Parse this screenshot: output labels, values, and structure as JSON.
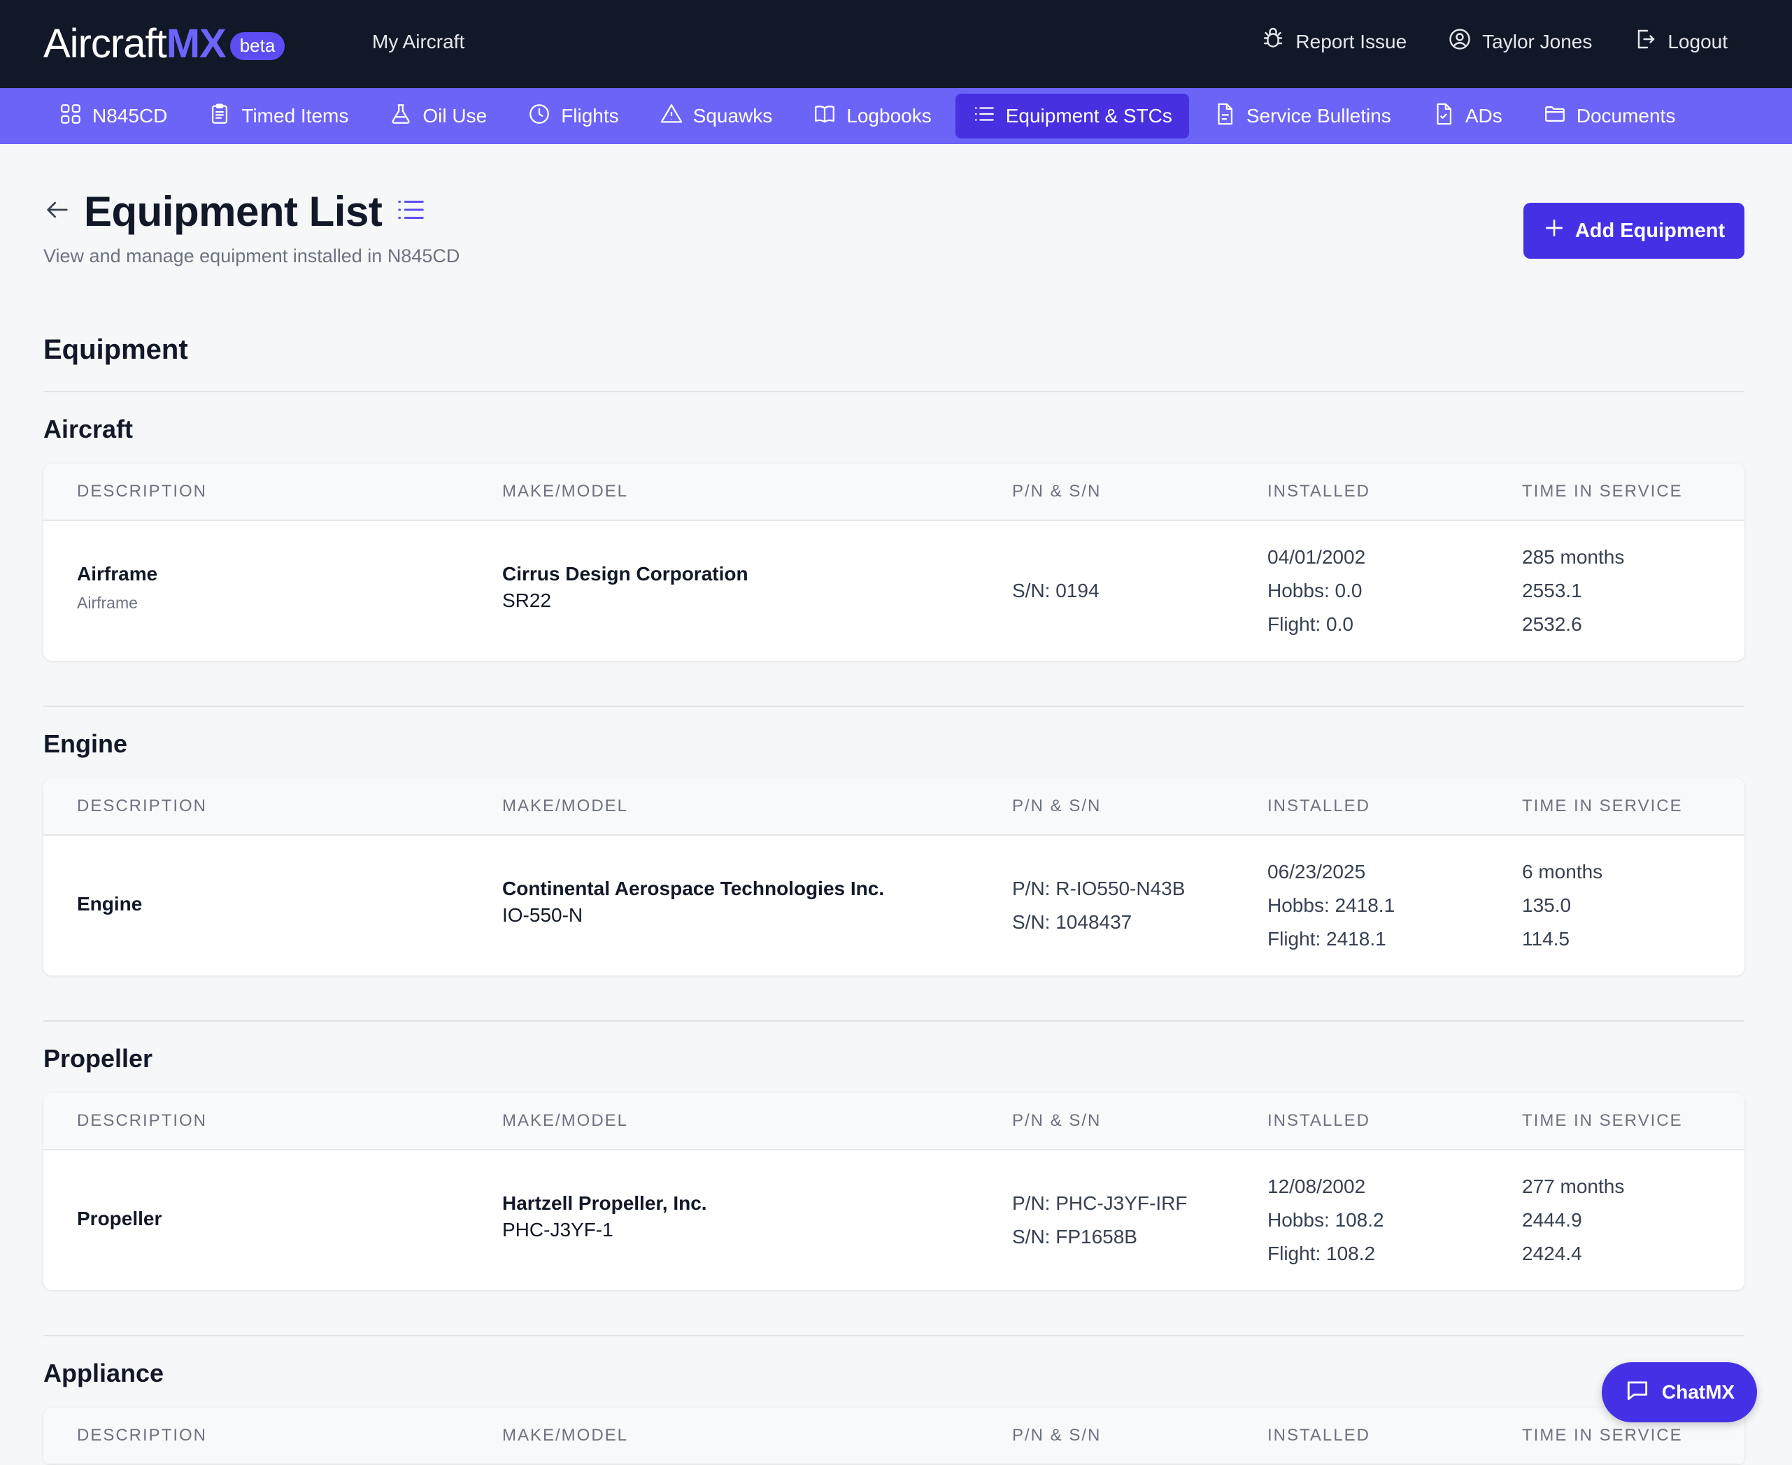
{
  "app": {
    "logo_word": "Aircraft",
    "logo_mx": "MX",
    "logo_badge": "beta",
    "my_aircraft": "My Aircraft"
  },
  "topbar": {
    "report_issue": "Report Issue",
    "user_name": "Taylor Jones",
    "logout": "Logout"
  },
  "subnav": {
    "items": [
      {
        "label": "N845CD",
        "icon": "grid-icon"
      },
      {
        "label": "Timed Items",
        "icon": "clipboard-icon"
      },
      {
        "label": "Oil Use",
        "icon": "flask-icon"
      },
      {
        "label": "Flights",
        "icon": "clock-icon"
      },
      {
        "label": "Squawks",
        "icon": "warning-icon"
      },
      {
        "label": "Logbooks",
        "icon": "book-icon"
      },
      {
        "label": "Equipment & STCs",
        "icon": "list-icon",
        "active": true
      },
      {
        "label": "Service Bulletins",
        "icon": "document-icon"
      },
      {
        "label": "ADs",
        "icon": "document-check-icon"
      },
      {
        "label": "Documents",
        "icon": "folder-icon"
      }
    ]
  },
  "header": {
    "title": "Equipment List",
    "subtitle": "View and manage equipment installed in N845CD",
    "add_button": "Add Equipment"
  },
  "section_title": "Equipment",
  "columns": [
    "DESCRIPTION",
    "MAKE/MODEL",
    "P/N & S/N",
    "INSTALLED",
    "TIME IN SERVICE"
  ],
  "groups": [
    {
      "title": "Aircraft",
      "row": {
        "description": "Airframe",
        "description_sub": "Airframe",
        "make": "Cirrus Design Corporation",
        "model": "SR22",
        "pn": "",
        "sn": "S/N: 0194",
        "installed_date": "04/01/2002",
        "installed_hobbs": "Hobbs: 0.0",
        "installed_flight": "Flight: 0.0",
        "tis_months": "285 months",
        "tis_hobbs": "2553.1",
        "tis_flight": "2532.6"
      }
    },
    {
      "title": "Engine",
      "row": {
        "description": "Engine",
        "make": "Continental Aerospace Technologies Inc.",
        "model": "IO-550-N",
        "pn": "P/N: R-IO550-N43B",
        "sn": "S/N: 1048437",
        "installed_date": "06/23/2025",
        "installed_hobbs": "Hobbs: 2418.1",
        "installed_flight": "Flight: 2418.1",
        "tis_months": "6 months",
        "tis_hobbs": "135.0",
        "tis_flight": "114.5"
      }
    },
    {
      "title": "Propeller",
      "row": {
        "description": "Propeller",
        "make": "Hartzell Propeller, Inc.",
        "model": "PHC-J3YF-1",
        "pn": "P/N: PHC-J3YF-IRF",
        "sn": "S/N: FP1658B",
        "installed_date": "12/08/2002",
        "installed_hobbs": "Hobbs: 108.2",
        "installed_flight": "Flight: 108.2",
        "tis_months": "277 months",
        "tis_hobbs": "2444.9",
        "tis_flight": "2424.4"
      }
    },
    {
      "title": "Appliance"
    }
  ],
  "chat": {
    "label": "ChatMX"
  },
  "colors": {
    "topbar": "#111827",
    "subnav": "#6c63f7",
    "subnav_active": "#4630e0",
    "primary": "#4431e6"
  }
}
